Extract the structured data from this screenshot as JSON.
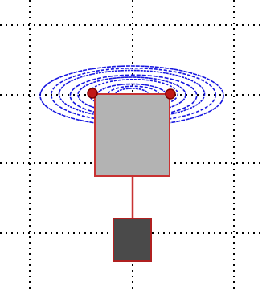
{
  "diagram": {
    "background_color": "#ffffff",
    "grid": {
      "visible": true,
      "style": "dotted",
      "color": "#000000"
    },
    "coil": {
      "color": "#1515e0",
      "loops": 9,
      "terminal_color": "#c01818",
      "terminal_count": 2
    },
    "box": {
      "fill": "#b3b3b3",
      "stroke": "#c83232"
    },
    "stem": {
      "color": "#c83232"
    },
    "base": {
      "fill": "#4a4a4a",
      "stroke": "#b02020"
    }
  }
}
